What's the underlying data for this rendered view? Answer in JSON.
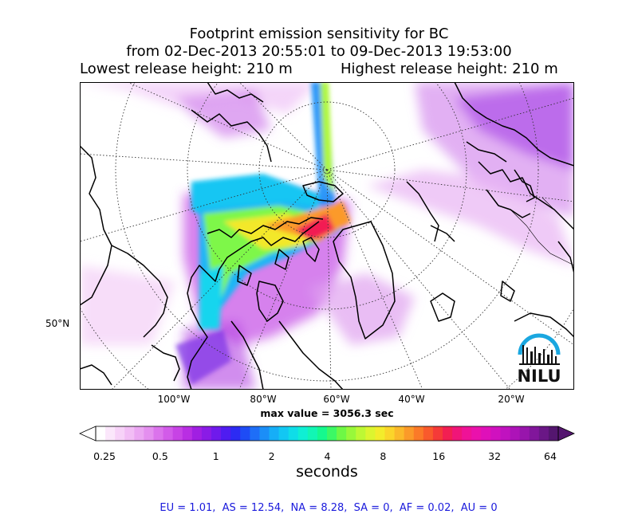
{
  "title": {
    "line1": "Footprint emission sensitivity for BC",
    "line2": "from 02-Dec-2013 20:55:01 to 09-Dec-2013 19:53:00",
    "lowest": "Lowest release height: 210 m",
    "highest": "Highest release height: 210 m"
  },
  "map": {
    "lat_label": "50°N",
    "lon_labels": [
      "100°W",
      "80°W",
      "60°W",
      "40°W",
      "20°W"
    ],
    "max_value_text": "max value = 3056.3 sec",
    "logo_text": "NILU",
    "logo_color": "#1aa7e0"
  },
  "colorbar": {
    "ticks": [
      "0.25",
      "0.5",
      "1",
      "2",
      "4",
      "8",
      "16",
      "32",
      "64"
    ],
    "label": "seconds",
    "colors": [
      "#ffffff",
      "#fbe7fb",
      "#f7d2f8",
      "#f2bdf5",
      "#eba6f2",
      "#e48fef",
      "#db73ec",
      "#d25be9",
      "#c743e5",
      "#b92ee3",
      "#a11fe2",
      "#8a1be6",
      "#6f1aec",
      "#4f1cf1",
      "#2c2bf3",
      "#1e4cf5",
      "#1e6ef7",
      "#1b8ef7",
      "#16aef7",
      "#12c7f3",
      "#0fdde8",
      "#0fefd4",
      "#12f6b4",
      "#15f98e",
      "#3cf865",
      "#6ef845",
      "#98f83a",
      "#bdf834",
      "#dcf52f",
      "#f3ec2b",
      "#fbd52a",
      "#fbb92a",
      "#fb9a29",
      "#fb7a28",
      "#f95a2c",
      "#f53a38",
      "#f21f52",
      "#f01578",
      "#ef1297",
      "#ea11ac",
      "#df10b9",
      "#d011bf",
      "#c012bf",
      "#ad13b8",
      "#9815ac",
      "#81169b",
      "#6a1786",
      "#54166f"
    ]
  },
  "footer": "EU = 1.01,  AS = 12.54,  NA = 8.28,  SA = 0,  AF = 0.02,  AU = 0"
}
